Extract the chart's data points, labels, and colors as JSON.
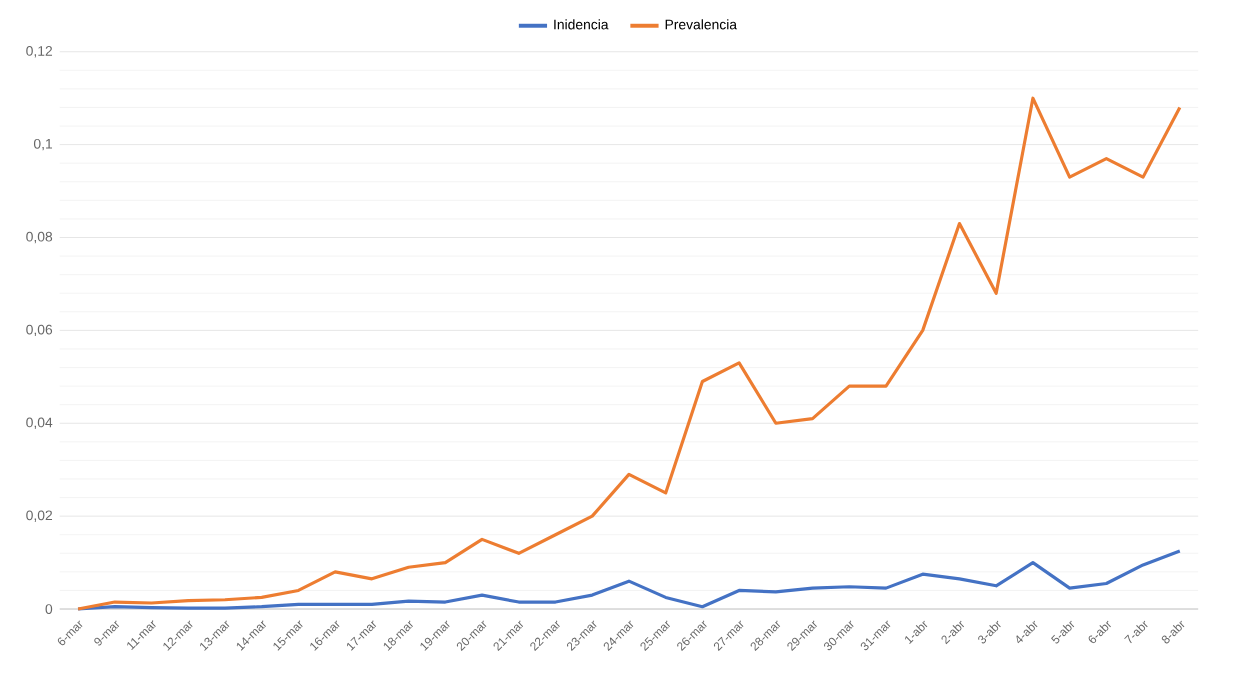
{
  "chart_data": {
    "type": "line",
    "categories": [
      "6-mar",
      "9-mar",
      "11-mar",
      "12-mar",
      "13-mar",
      "14-mar",
      "15-mar",
      "16-mar",
      "17-mar",
      "18-mar",
      "19-mar",
      "20-mar",
      "21-mar",
      "22-mar",
      "23-mar",
      "24-mar",
      "25-mar",
      "26-mar",
      "27-mar",
      "28-mar",
      "29-mar",
      "30-mar",
      "31-mar",
      "1-abr",
      "2-abr",
      "3-abr",
      "4-abr",
      "5-abr",
      "6-abr",
      "7-abr",
      "8-abr"
    ],
    "series": [
      {
        "name": "Inidencia",
        "color": "#4472c4",
        "values": [
          0,
          0.0005,
          0.0003,
          0.0002,
          0.0002,
          0.0005,
          0.001,
          0.001,
          0.001,
          0.0017,
          0.0015,
          0.003,
          0.0015,
          0.0015,
          0.003,
          0.006,
          0.0025,
          0.0005,
          0.004,
          0.0037,
          0.0045,
          0.0048,
          0.0045,
          0.0075,
          0.0065,
          0.005,
          0.01,
          0.0045,
          0.0055,
          0.0095,
          0.0125
        ]
      },
      {
        "name": "Prevalencia",
        "color": "#ed7d31",
        "values": [
          0,
          0.0015,
          0.0013,
          0.0018,
          0.002,
          0.0025,
          0.004,
          0.008,
          0.0065,
          0.009,
          0.01,
          0.015,
          0.012,
          0.016,
          0.02,
          0.029,
          0.025,
          0.049,
          0.053,
          0.04,
          0.041,
          0.048,
          0.048,
          0.06,
          0.083,
          0.068,
          0.11,
          0.093,
          0.097,
          0.093,
          0.108
        ]
      }
    ],
    "ylim": [
      0,
      0.12
    ],
    "yticks": [
      0,
      {
        "value": 0.02,
        "label": "0,02"
      },
      {
        "value": 0.04,
        "label": "0,04"
      },
      {
        "value": 0.06,
        "label": "0,06"
      },
      {
        "value": 0.08,
        "label": "0,08"
      },
      {
        "value": 0.1,
        "label": "0,1"
      },
      {
        "value": 0.12,
        "label": "0,12"
      }
    ],
    "grid": "y",
    "legend": "top",
    "marker": "none",
    "line_style": "solid"
  }
}
